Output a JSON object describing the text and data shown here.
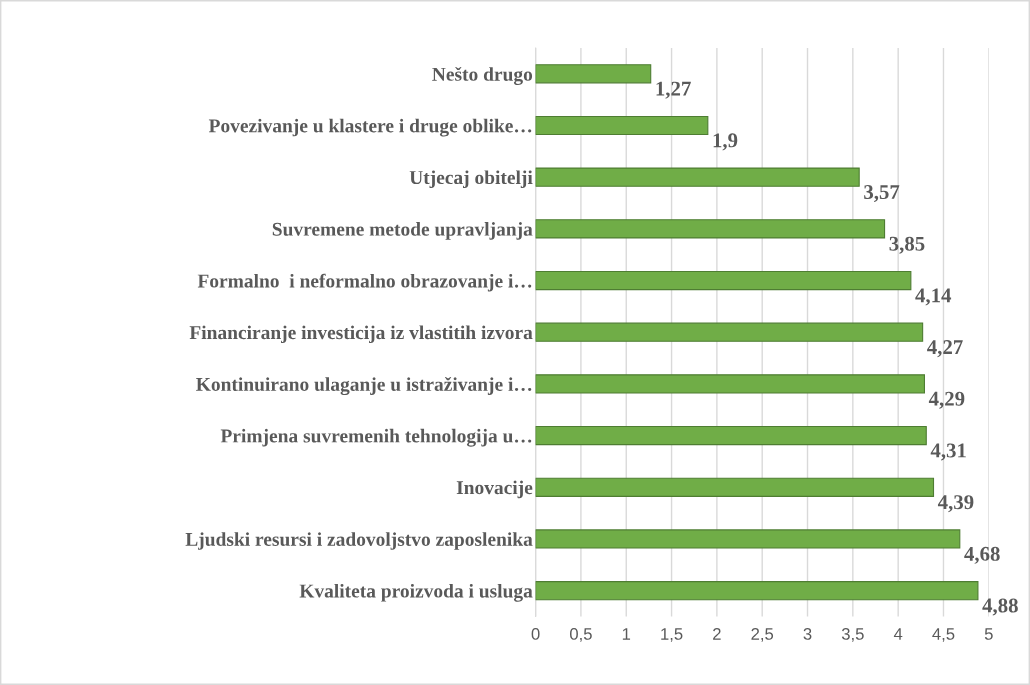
{
  "chart_data": {
    "type": "bar",
    "orientation": "horizontal",
    "categories": [
      "Nešto drugo",
      "Povezivanje u klastere i druge oblike…",
      "Utjecaj obitelji",
      "Suvremene metode upravljanja",
      "Formalno  i neformalno obrazovanje i…",
      "Financiranje investicija iz vlastitih izvora",
      "Kontinuirano ulaganje u istraživanje i…",
      "Primjena suvremenih tehnologija u…",
      "Inovacije",
      "Ljudski resursi i zadovoljstvo zaposlenika",
      "Kvaliteta proizvoda i usluga"
    ],
    "values": [
      1.27,
      1.9,
      3.57,
      3.85,
      4.14,
      4.27,
      4.29,
      4.31,
      4.39,
      4.68,
      4.88
    ],
    "value_labels": [
      "1,27",
      "1,9",
      "3,57",
      "3,85",
      "4,14",
      "4,27",
      "4,29",
      "4,31",
      "4,39",
      "4,68",
      "4,88"
    ],
    "color": "#70ad47",
    "xlim": [
      0,
      5
    ],
    "xticks": [
      0,
      {
        "value": 0.5,
        "label": "0,5"
      },
      1,
      {
        "value": 1.5,
        "label": "1,5"
      },
      2,
      {
        "value": 2.5,
        "label": "2,5"
      },
      3,
      {
        "value": 3.5,
        "label": "3,5"
      },
      4,
      {
        "value": 4.5,
        "label": "4,5"
      },
      5
    ],
    "grid": "x"
  }
}
